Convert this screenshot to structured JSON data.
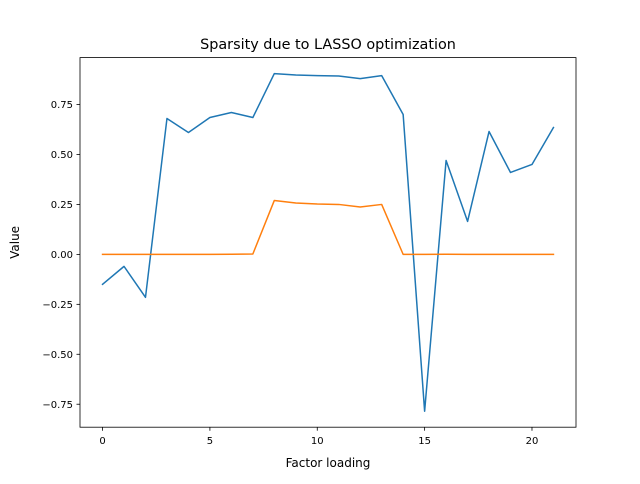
{
  "chart_data": {
    "type": "line",
    "title": "Sparsity due to LASSO optimization",
    "xlabel": "Factor loading",
    "ylabel": "Value",
    "xlim": [
      -1.05,
      22.05
    ],
    "ylim": [
      -0.865,
      0.985
    ],
    "x_ticks": [
      0,
      5,
      10,
      15,
      20
    ],
    "x_tick_labels": [
      "0",
      "5",
      "10",
      "15",
      "20"
    ],
    "y_ticks": [
      -0.75,
      -0.5,
      -0.25,
      0.0,
      0.25,
      0.5,
      0.75
    ],
    "y_tick_labels": [
      "−0.75",
      "−0.50",
      "−0.25",
      "0.00",
      "0.25",
      "0.50",
      "0.75"
    ],
    "grid": false,
    "x": [
      0,
      1,
      2,
      3,
      4,
      5,
      6,
      7,
      8,
      9,
      10,
      11,
      12,
      13,
      14,
      15,
      16,
      17,
      18,
      19,
      20,
      21
    ],
    "series": [
      {
        "color": "#1f77b4",
        "values": [
          -0.15,
          -0.06,
          -0.215,
          0.68,
          0.61,
          0.685,
          0.71,
          0.685,
          0.905,
          0.898,
          0.895,
          0.893,
          0.88,
          0.895,
          0.7,
          -0.785,
          0.47,
          0.165,
          0.615,
          0.41,
          0.45,
          0.635
        ]
      },
      {
        "color": "#ff7f0e",
        "values": [
          0.0,
          0.0,
          0.0,
          0.0,
          0.0,
          0.0,
          0.001,
          0.002,
          0.27,
          0.257,
          0.252,
          0.25,
          0.237,
          0.25,
          0.0,
          0.0,
          0.001,
          0.0,
          0.0,
          0.0,
          0.0,
          0.0
        ]
      }
    ]
  }
}
